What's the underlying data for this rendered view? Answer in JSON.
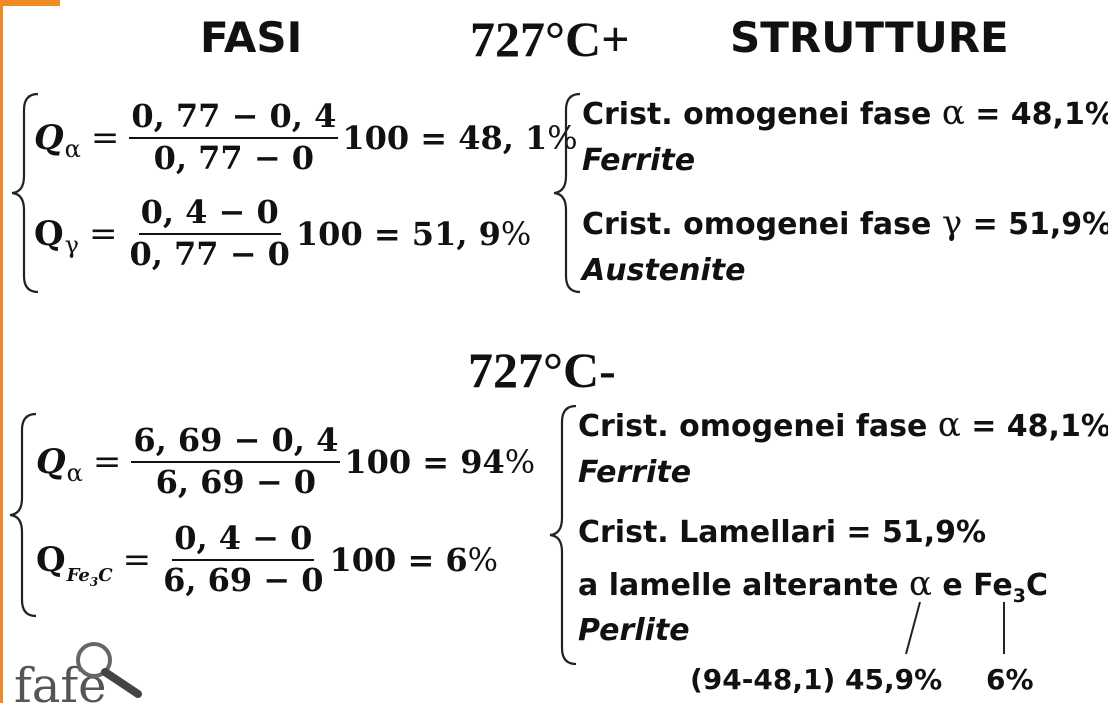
{
  "headers": {
    "fasi": "FASI",
    "temp_plus": "727°C+",
    "strutture": "STRUTTURE",
    "temp_minus": "727°C-"
  },
  "top_equations": {
    "eq1": {
      "q": "Q",
      "sub": "α",
      "num": "0, 77 − 0, 4",
      "den": "0, 77 − 0",
      "mult": "100 = 48, 1",
      "pct": "%"
    },
    "eq2": {
      "q": "Q",
      "sub": "γ",
      "num": "0, 4 − 0",
      "den": "0, 77 − 0",
      "mult": "100 = 51, 9",
      "pct": "%"
    }
  },
  "top_structures": {
    "line1_prefix": "Crist. omogenei fase ",
    "line1_greek": "α",
    "line1_suffix": " = 48,1%",
    "line2": "Ferrite",
    "line3_prefix": "Crist. omogenei fase ",
    "line3_greek": "γ",
    "line3_suffix": " = 51,9%",
    "line4": "Austenite"
  },
  "bottom_equations": {
    "eq1": {
      "q": "Q",
      "sub": "α",
      "num": "6, 69 − 0, 4",
      "den": "6, 69 − 0",
      "mult": "100 = 94",
      "pct": "%"
    },
    "eq2": {
      "q": "Q",
      "sub": "Fe",
      "sub_idx": "3",
      "sub_tail": "C",
      "num": "0, 4 − 0",
      "den": "6, 69 − 0",
      "mult": "100 = 6",
      "pct": "%"
    }
  },
  "bottom_structures": {
    "line1_prefix": "Crist. omogenei fase ",
    "line1_greek": "α",
    "line1_suffix": " = 48,1%",
    "line2": "Ferrite",
    "line3": "Crist. Lamellari = 51,9%",
    "line4_prefix": "a lamelle alterante ",
    "line4_greek": "α",
    "line4_mid": " e Fe",
    "line4_idx": "3",
    "line4_tail": "C",
    "line5": "Perlite"
  },
  "notes": {
    "left": "(94-48,1) 45,9%",
    "right": "6%"
  },
  "logo": {
    "text": "fafe"
  },
  "colors": {
    "accent": "#f08a24",
    "text": "#111111"
  }
}
